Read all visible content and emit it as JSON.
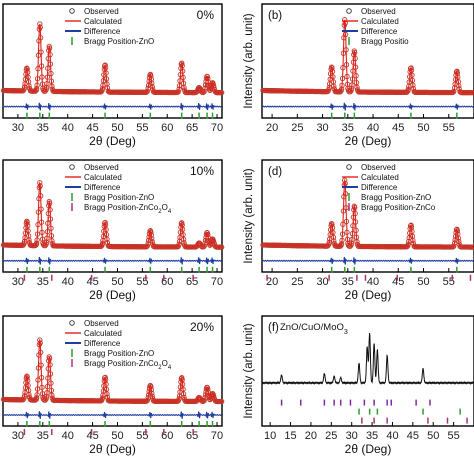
{
  "chart_data": [
    {
      "panel": "a",
      "panel_label": "",
      "type": "line",
      "corner_label": "0%",
      "xlabel": "2θ (Deg)",
      "ylabel": "",
      "xlim": [
        27,
        71
      ],
      "ticks": [
        30,
        35,
        40,
        45,
        50,
        55,
        60,
        65,
        70
      ],
      "tick_labels": [
        "30",
        "35",
        "40",
        "45",
        "50",
        "55",
        "60",
        "65",
        "70"
      ],
      "legend": [
        "Observed",
        "Calculated",
        "Difference",
        "Bragg Position-ZnO"
      ],
      "peaks": [
        [
          31.8,
          0.28
        ],
        [
          34.4,
          0.82
        ],
        [
          36.3,
          0.55
        ],
        [
          47.5,
          0.33
        ],
        [
          56.6,
          0.22
        ],
        [
          62.9,
          0.36
        ],
        [
          66.4,
          0.06
        ],
        [
          68.0,
          0.2
        ],
        [
          69.1,
          0.12
        ]
      ],
      "bragg": [
        [
          31.8,
          34.4,
          36.3,
          47.5,
          56.6,
          62.9,
          66.4,
          68.0,
          69.1
        ]
      ]
    },
    {
      "panel": "b",
      "panel_label": "(b)",
      "type": "line",
      "corner_label": "",
      "xlabel": "2θ (Deg)",
      "ylabel": "Intensity (arb. unit)",
      "xlim": [
        18,
        60
      ],
      "ticks": [
        20,
        25,
        30,
        35,
        40,
        45,
        50,
        55
      ],
      "tick_labels": [
        "20",
        "25",
        "30",
        "35",
        "40",
        "45",
        "50",
        "55"
      ],
      "legend": [
        "Observed",
        "Calculated",
        "Difference",
        "Bragg Positio"
      ],
      "peaks": [
        [
          31.8,
          0.3
        ],
        [
          34.4,
          0.88
        ],
        [
          36.3,
          0.5
        ],
        [
          47.5,
          0.3
        ],
        [
          56.6,
          0.26
        ]
      ],
      "bragg": [
        [
          31.8,
          34.4,
          36.3,
          47.5,
          56.6
        ]
      ]
    },
    {
      "panel": "c",
      "panel_label": "",
      "type": "line",
      "corner_label": "10%",
      "xlabel": "2θ (Deg)",
      "ylabel": "",
      "xlim": [
        27,
        71
      ],
      "ticks": [
        30,
        35,
        40,
        45,
        50,
        55,
        60,
        65,
        70
      ],
      "tick_labels": [
        "30",
        "35",
        "40",
        "45",
        "50",
        "55",
        "60",
        "65",
        "70"
      ],
      "legend": [
        "Observed",
        "Calculated",
        "Difference",
        "Bragg Position-ZnO",
        "Bragg Position-ZnCo2O4"
      ],
      "peaks": [
        [
          31.8,
          0.3
        ],
        [
          34.4,
          0.78
        ],
        [
          36.3,
          0.55
        ],
        [
          47.5,
          0.3
        ],
        [
          56.6,
          0.2
        ],
        [
          62.9,
          0.3
        ],
        [
          66.4,
          0.05
        ],
        [
          68.0,
          0.18
        ],
        [
          69.1,
          0.1
        ]
      ],
      "bragg": [
        [
          31.8,
          34.4,
          36.3,
          47.5,
          56.6,
          62.9,
          66.4,
          68.0,
          69.1
        ],
        [
          31.3,
          36.8,
          44.8,
          55.7,
          59.3,
          65.2
        ]
      ]
    },
    {
      "panel": "d",
      "panel_label": "(d)",
      "type": "line",
      "corner_label": "",
      "xlabel": "2θ (Deg)",
      "ylabel": "Intensity (arb. unit)",
      "xlim": [
        18,
        60
      ],
      "ticks": [
        20,
        25,
        30,
        35,
        40,
        45,
        50,
        55
      ],
      "tick_labels": [
        "20",
        "25",
        "30",
        "35",
        "40",
        "45",
        "50",
        "55"
      ],
      "legend": [
        "Observed",
        "Calculated",
        "Difference",
        "Bragg Position-ZnO",
        "Bragg Position-ZnCo"
      ],
      "peaks": [
        [
          31.8,
          0.28
        ],
        [
          34.4,
          0.82
        ],
        [
          36.3,
          0.5
        ],
        [
          47.5,
          0.27
        ],
        [
          56.6,
          0.22
        ]
      ],
      "bragg": [
        [
          31.8,
          34.4,
          36.3,
          47.5,
          56.6
        ],
        [
          19.0,
          31.3,
          36.8,
          38.5,
          44.8,
          55.7,
          59.3
        ]
      ]
    },
    {
      "panel": "e",
      "panel_label": "",
      "type": "line",
      "corner_label": "20%",
      "xlabel": "2θ (Deg)",
      "ylabel": "",
      "xlim": [
        27,
        71
      ],
      "ticks": [
        30,
        35,
        40,
        45,
        50,
        55,
        60,
        65,
        70
      ],
      "tick_labels": [
        "30",
        "35",
        "40",
        "45",
        "50",
        "55",
        "60",
        "65",
        "70"
      ],
      "legend": [
        "Observed",
        "Calculated",
        "Difference",
        "Bragg Position-ZnO",
        "Bragg Position-ZnCo2O4"
      ],
      "peaks": [
        [
          31.8,
          0.3
        ],
        [
          34.4,
          0.76
        ],
        [
          36.3,
          0.55
        ],
        [
          47.5,
          0.3
        ],
        [
          56.6,
          0.2
        ],
        [
          62.9,
          0.3
        ],
        [
          66.4,
          0.05
        ],
        [
          68.0,
          0.18
        ],
        [
          69.1,
          0.1
        ]
      ],
      "bragg": [
        [
          31.8,
          34.4,
          36.3,
          47.5,
          56.6,
          62.9,
          66.4,
          68.0,
          69.1
        ],
        [
          31.3,
          36.8,
          44.8,
          55.7,
          59.3,
          65.2
        ]
      ]
    },
    {
      "panel": "f",
      "panel_label": "(f)",
      "type": "line",
      "corner_label": "ZnO/CuO/MoO3",
      "xlabel": "2θ (Deg)",
      "ylabel": "Intensity (arb. unit)",
      "xlim": [
        8,
        60
      ],
      "ticks": [
        10,
        15,
        20,
        25,
        30,
        35,
        40,
        45,
        50,
        55
      ],
      "tick_labels": [
        "10",
        "15",
        "20",
        "25",
        "30",
        "35",
        "40",
        "45",
        "50",
        "55"
      ],
      "legend": [],
      "peaks": [
        [
          12.8,
          0.12
        ],
        [
          23.3,
          0.14
        ],
        [
          25.7,
          0.1
        ],
        [
          27.3,
          0.08
        ],
        [
          31.8,
          0.3
        ],
        [
          33.8,
          0.55
        ],
        [
          34.4,
          0.75
        ],
        [
          35.5,
          0.6
        ],
        [
          36.3,
          0.5
        ],
        [
          38.7,
          0.42
        ],
        [
          47.5,
          0.22
        ]
      ],
      "bragg": [
        [
          12.8,
          17.5,
          23.3,
          25.7,
          27.3,
          29.7,
          33.1,
          35.5,
          38.7,
          39.7,
          45.8,
          49.2
        ],
        [
          31.8,
          34.4,
          36.3,
          47.5,
          56.6
        ],
        [
          32.5,
          35.5,
          38.7,
          48.7,
          53.5,
          58.3
        ]
      ]
    }
  ],
  "colors": {
    "observed": "#c0392b",
    "calculated": "#e0201a",
    "difference": "#1f3fa0",
    "bragg_zno": "#2e9e2e",
    "bragg_second": "#b0307a",
    "bragg_third": "#7a2fa0",
    "axes": "#000000"
  }
}
